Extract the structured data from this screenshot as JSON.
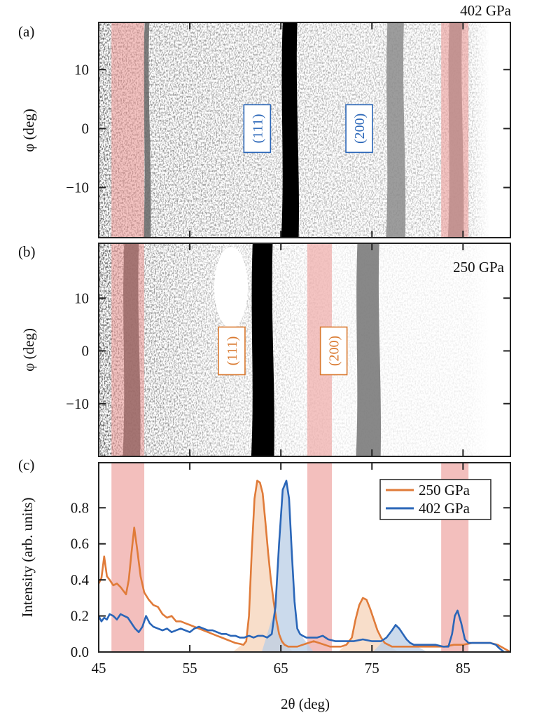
{
  "colors": {
    "orange": "#E07B39",
    "blue": "#2A66B8",
    "band": "#EC9C9A",
    "orange_fill": "#F6D3B8",
    "blue_fill": "#B9CDE6",
    "label_blue": "#2A66B8",
    "label_orange": "#D9782E"
  },
  "chart_data": [
    {
      "type": "heatmap",
      "panel_label": "(a)",
      "annotation": "402 GPa",
      "ylabel": "φ (deg)",
      "xlim": [
        45,
        90.2
      ],
      "ylim": [
        -18.5,
        18
      ],
      "yticks": [
        10,
        0,
        -10
      ],
      "ytick_labels": [
        "10",
        "0",
        "−10"
      ],
      "xticks": [
        45,
        55,
        65,
        75,
        85
      ],
      "peak_labels": [
        {
          "text": "(111)",
          "two_theta": 62.4,
          "phi": 0
        },
        {
          "text": "(200)",
          "two_theta": 73.6,
          "phi": 0
        }
      ],
      "bands": [
        [
          46.4,
          50.0
        ],
        [
          82.6,
          85.6
        ]
      ],
      "rings": [
        {
          "two_theta": 66.0,
          "width": 1.6,
          "intensity": 1.0
        },
        {
          "two_theta": 77.6,
          "width": 1.8,
          "intensity": 0.45
        },
        {
          "two_theta": 50.3,
          "width": 0.5,
          "intensity": 0.6
        },
        {
          "two_theta": 84.2,
          "width": 1.4,
          "intensity": 0.55
        }
      ]
    },
    {
      "type": "heatmap",
      "panel_label": "(b)",
      "annotation": "250 GPa",
      "ylabel": "φ (deg)",
      "xlim": [
        45,
        90.2
      ],
      "ylim": [
        -20,
        20.4
      ],
      "yticks": [
        10,
        0,
        -10
      ],
      "ytick_labels": [
        "10",
        "0",
        "−10"
      ],
      "xticks": [
        45,
        55,
        65,
        75,
        85
      ],
      "peak_labels": [
        {
          "text": "(111)",
          "two_theta": 59.6,
          "phi": 0
        },
        {
          "text": "(200)",
          "two_theta": 70.8,
          "phi": 0
        }
      ],
      "bands": [
        [
          46.4,
          50.0
        ],
        [
          67.9,
          70.6
        ]
      ],
      "rings": [
        {
          "two_theta": 63.0,
          "width": 2.2,
          "intensity": 1.0
        },
        {
          "two_theta": 74.6,
          "width": 2.4,
          "intensity": 0.55
        },
        {
          "two_theta": 48.6,
          "width": 1.6,
          "intensity": 0.9
        }
      ]
    },
    {
      "type": "line",
      "panel_label": "(c)",
      "xlabel": "2θ (deg)",
      "ylabel": "Intensity (arb. units)",
      "xlim": [
        45,
        90.2
      ],
      "ylim": [
        0,
        1.05
      ],
      "xticks": [
        45,
        55,
        65,
        75,
        85
      ],
      "xtick_labels": [
        "45",
        "55",
        "65",
        "75",
        "85"
      ],
      "yticks": [
        0.0,
        0.2,
        0.4,
        0.6,
        0.8
      ],
      "ytick_labels": [
        "0.0",
        "0.2",
        "0.4",
        "0.6",
        "0.8"
      ],
      "legend_position": "top-right",
      "bands": [
        [
          46.4,
          50.0
        ],
        [
          67.9,
          70.6
        ],
        [
          82.6,
          85.6
        ]
      ],
      "series": [
        {
          "name": "250 GPa",
          "color_key": "orange",
          "x": [
            45.0,
            45.3,
            45.6,
            45.9,
            46.2,
            46.6,
            47.0,
            47.4,
            47.7,
            48.0,
            48.3,
            48.6,
            48.9,
            49.2,
            49.6,
            50.0,
            50.5,
            51.0,
            51.5,
            52.0,
            52.5,
            53.0,
            53.5,
            54.0,
            54.5,
            55.0,
            55.5,
            56.0,
            56.5,
            57.0,
            57.5,
            58.0,
            58.5,
            59.0,
            59.5,
            60.0,
            60.5,
            60.9,
            61.2,
            61.5,
            61.8,
            62.1,
            62.4,
            62.7,
            63.0,
            63.3,
            63.6,
            63.9,
            64.2,
            64.5,
            64.8,
            65.1,
            65.4,
            65.8,
            66.2,
            66.8,
            67.4,
            68.0,
            68.6,
            69.2,
            69.8,
            70.4,
            71.0,
            71.6,
            72.2,
            72.8,
            73.2,
            73.6,
            74.0,
            74.4,
            74.8,
            75.2,
            75.6,
            76.0,
            76.4,
            76.8,
            77.2,
            77.8,
            78.4,
            79.0,
            80.0,
            81.0,
            82.0,
            83.0,
            84.0,
            85.0,
            86.0,
            87.0,
            88.0,
            88.8,
            89.5,
            90.2
          ],
          "y": [
            0.38,
            0.41,
            0.53,
            0.42,
            0.4,
            0.37,
            0.38,
            0.36,
            0.34,
            0.32,
            0.4,
            0.55,
            0.69,
            0.58,
            0.42,
            0.33,
            0.29,
            0.26,
            0.25,
            0.21,
            0.19,
            0.2,
            0.17,
            0.17,
            0.16,
            0.15,
            0.14,
            0.13,
            0.12,
            0.11,
            0.1,
            0.09,
            0.08,
            0.07,
            0.06,
            0.05,
            0.045,
            0.04,
            0.06,
            0.2,
            0.55,
            0.85,
            0.95,
            0.94,
            0.88,
            0.72,
            0.55,
            0.4,
            0.28,
            0.18,
            0.1,
            0.06,
            0.04,
            0.03,
            0.03,
            0.03,
            0.04,
            0.05,
            0.06,
            0.05,
            0.04,
            0.03,
            0.03,
            0.03,
            0.04,
            0.08,
            0.18,
            0.26,
            0.3,
            0.29,
            0.24,
            0.18,
            0.12,
            0.08,
            0.05,
            0.04,
            0.03,
            0.03,
            0.03,
            0.03,
            0.03,
            0.03,
            0.03,
            0.03,
            0.04,
            0.04,
            0.05,
            0.05,
            0.05,
            0.04,
            0.02,
            0.0
          ]
        },
        {
          "name": "402 GPa",
          "color_key": "blue",
          "x": [
            45.0,
            45.3,
            45.6,
            45.9,
            46.2,
            46.6,
            47.0,
            47.4,
            47.8,
            48.2,
            48.6,
            49.0,
            49.4,
            49.8,
            50.2,
            50.6,
            51.0,
            51.5,
            52.0,
            52.5,
            53.0,
            53.5,
            54.0,
            54.5,
            55.0,
            55.5,
            56.0,
            56.5,
            57.0,
            57.5,
            58.0,
            58.5,
            59.0,
            59.5,
            60.0,
            60.5,
            61.0,
            61.5,
            62.0,
            62.5,
            63.0,
            63.5,
            64.0,
            64.4,
            64.8,
            65.2,
            65.6,
            65.9,
            66.2,
            66.5,
            66.8,
            67.1,
            67.4,
            67.8,
            68.4,
            69.0,
            69.6,
            70.2,
            71.0,
            72.0,
            73.0,
            74.0,
            75.0,
            76.0,
            76.6,
            77.2,
            77.6,
            78.0,
            78.4,
            78.8,
            79.2,
            79.6,
            80.0,
            81.0,
            82.0,
            82.8,
            83.4,
            83.8,
            84.1,
            84.4,
            84.8,
            85.2,
            85.6,
            86.0,
            87.0,
            88.0,
            88.6,
            89.0,
            89.5,
            90.2
          ],
          "y": [
            0.2,
            0.17,
            0.19,
            0.18,
            0.21,
            0.2,
            0.18,
            0.21,
            0.2,
            0.19,
            0.16,
            0.13,
            0.11,
            0.14,
            0.2,
            0.16,
            0.14,
            0.13,
            0.12,
            0.13,
            0.11,
            0.12,
            0.13,
            0.12,
            0.11,
            0.13,
            0.14,
            0.13,
            0.12,
            0.12,
            0.11,
            0.1,
            0.1,
            0.09,
            0.09,
            0.08,
            0.08,
            0.09,
            0.08,
            0.09,
            0.09,
            0.08,
            0.1,
            0.25,
            0.6,
            0.9,
            0.95,
            0.85,
            0.55,
            0.28,
            0.13,
            0.1,
            0.09,
            0.08,
            0.08,
            0.08,
            0.09,
            0.07,
            0.06,
            0.06,
            0.06,
            0.07,
            0.06,
            0.06,
            0.08,
            0.12,
            0.15,
            0.13,
            0.1,
            0.07,
            0.05,
            0.04,
            0.04,
            0.04,
            0.04,
            0.03,
            0.03,
            0.1,
            0.2,
            0.23,
            0.16,
            0.07,
            0.05,
            0.05,
            0.05,
            0.05,
            0.04,
            0.02,
            0.0,
            0.0
          ]
        }
      ]
    }
  ]
}
